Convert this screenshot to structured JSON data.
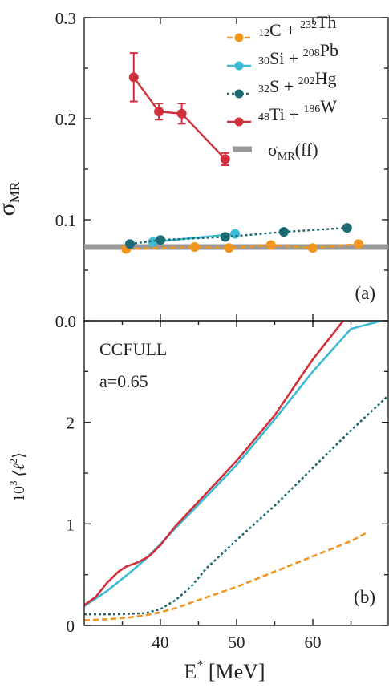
{
  "chart_data": [
    {
      "panel": "(a)",
      "type": "scatter",
      "ylabel_main": "σ",
      "ylabel_sub": "MR",
      "xlim": [
        30,
        70
      ],
      "ylim": [
        0.0,
        0.3
      ],
      "yticks": [
        "0.0",
        "0.1",
        "0.2",
        "0.3"
      ],
      "grid": false,
      "legend_position": "top-right",
      "reference": {
        "name_main": "σ",
        "name_sub": "MR",
        "name_suffix": "(ff)",
        "value": 0.073,
        "color": "#9a9a9a"
      },
      "series": [
        {
          "parts": [
            [
              "sup",
              "12"
            ],
            [
              "n",
              "C"
            ],
            [
              "n",
              " + "
            ],
            [
              "sup",
              "232"
            ],
            [
              "n",
              "Th"
            ]
          ],
          "color": "#f0961e",
          "dash": "dash",
          "x": [
            35.5,
            44.5,
            49,
            54.5,
            60,
            66
          ],
          "y": [
            0.071,
            0.073,
            0.072,
            0.075,
            0.072,
            0.076
          ],
          "err": []
        },
        {
          "parts": [
            [
              "sup",
              "30"
            ],
            [
              "n",
              "Si"
            ],
            [
              "n",
              " + "
            ],
            [
              "sup",
              "208"
            ],
            [
              "n",
              "Pb"
            ]
          ],
          "color": "#3dbad6",
          "dash": "solid",
          "x": [
            39,
            49.8
          ],
          "y": [
            0.078,
            0.086
          ],
          "err": []
        },
        {
          "parts": [
            [
              "sup",
              "32"
            ],
            [
              "n",
              "S"
            ],
            [
              "n",
              " + "
            ],
            [
              "sup",
              "202"
            ],
            [
              "n",
              "Hg"
            ]
          ],
          "color": "#1b6b73",
          "dash": "dot",
          "x": [
            36,
            40,
            48.5,
            56.2,
            64.5
          ],
          "y": [
            0.076,
            0.08,
            0.083,
            0.088,
            0.092
          ],
          "err": []
        },
        {
          "parts": [
            [
              "sup",
              "48"
            ],
            [
              "n",
              "Ti"
            ],
            [
              "n",
              " + "
            ],
            [
              "sup",
              "186"
            ],
            [
              "n",
              "W"
            ]
          ],
          "color": "#d0303a",
          "dash": "solid",
          "x": [
            36.5,
            39.8,
            42.8,
            48.5
          ],
          "y": [
            0.241,
            0.207,
            0.205,
            0.16
          ],
          "err": [
            0.024,
            0.008,
            0.01,
            0.006
          ]
        }
      ]
    },
    {
      "panel": "(b)",
      "type": "line",
      "ylabel_prefix": "10",
      "ylabel_exp": "3",
      "ylabel_rest": " ⟨ℓ",
      "ylabel_exp2": "2",
      "ylabel_close": "⟩",
      "xlabel_main": "E",
      "xlabel_sup": "*",
      "xlabel_rest": " [MeV]",
      "xlim": [
        30,
        70
      ],
      "ylim": [
        0,
        3
      ],
      "xticks": [
        "40",
        "50",
        "60"
      ],
      "yticks": [
        "0",
        "1",
        "2"
      ],
      "grid": false,
      "annotations": [
        "CCFULL",
        "a=0.65"
      ],
      "series": [
        {
          "color": "#f0961e",
          "dash": "dash",
          "x": [
            30,
            33,
            36,
            38,
            40,
            42,
            45,
            50,
            55,
            60,
            65,
            67
          ],
          "y": [
            0.05,
            0.06,
            0.08,
            0.1,
            0.13,
            0.17,
            0.25,
            0.38,
            0.53,
            0.68,
            0.83,
            0.91
          ]
        },
        {
          "color": "#3dbad6",
          "dash": "solid",
          "x": [
            30,
            33,
            36,
            38,
            40,
            42,
            45,
            50,
            55,
            60,
            65,
            69
          ],
          "y": [
            0.19,
            0.34,
            0.52,
            0.65,
            0.8,
            0.96,
            1.19,
            1.58,
            2.03,
            2.5,
            2.92,
            3.0
          ]
        },
        {
          "color": "#1b6b73",
          "dash": "dot",
          "x": [
            30,
            34,
            38,
            40,
            42,
            44,
            46,
            48,
            50,
            55,
            60,
            65,
            70
          ],
          "y": [
            0.11,
            0.11,
            0.12,
            0.16,
            0.25,
            0.38,
            0.56,
            0.7,
            0.84,
            1.18,
            1.55,
            1.92,
            2.27
          ]
        },
        {
          "color": "#d0303a",
          "dash": "solid",
          "x": [
            30,
            31.5,
            33,
            34.5,
            35.5,
            37,
            38.5,
            40,
            42,
            45,
            50,
            55,
            60,
            64
          ],
          "y": [
            0.2,
            0.28,
            0.42,
            0.53,
            0.58,
            0.62,
            0.68,
            0.79,
            0.98,
            1.22,
            1.62,
            2.07,
            2.62,
            3.0
          ]
        }
      ]
    }
  ]
}
